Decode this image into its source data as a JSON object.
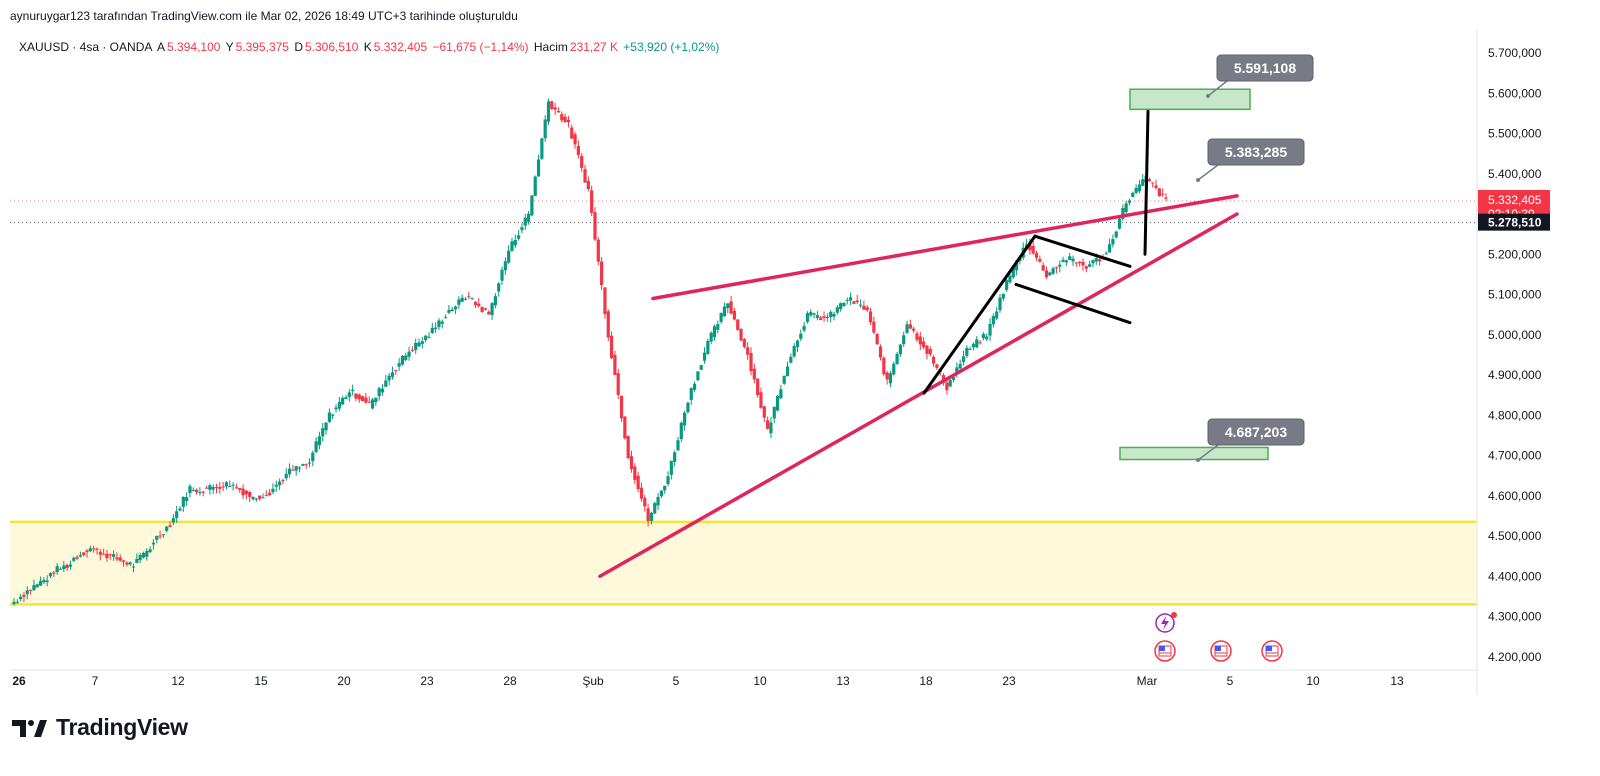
{
  "header": {
    "credit": "aynuruygar123 tarafından TradingView.com ile Mar 02, 2026 18:49 UTC+3 tarihinde oluşturuldu"
  },
  "symbol_bar": {
    "symbol": "XAUUSD · 4sa · OANDA",
    "open_label": "A",
    "open": "5.394,100",
    "high_label": "Y",
    "high": "5.395,375",
    "low_label": "D",
    "low": "5.306,510",
    "close_label": "K",
    "close": "5.332,405",
    "change": "−61,675 (−1,14%)",
    "volume_label": "Hacim",
    "volume": "231,27 K",
    "volume_change": "+53,920 (+1,02%)"
  },
  "brand": {
    "name": "TradingView"
  },
  "colors": {
    "up": "#089981",
    "down": "#f23645",
    "trendline": "#e0245e",
    "zone_fill": "#fff9db",
    "zone_border": "#f7e43a",
    "target_fill": "#c8e6c9",
    "target_border": "#4caf50",
    "callout_bg": "#787b86"
  },
  "chart_data": {
    "type": "candlestick",
    "symbol": "XAUUSD",
    "timeframe": "4sa",
    "x_axis_ticks": [
      "26",
      "7",
      "12",
      "15",
      "20",
      "23",
      "28",
      "Şub",
      "5",
      "10",
      "13",
      "18",
      "23",
      "Mar",
      "5",
      "10",
      "13"
    ],
    "y_axis_ticks": [
      "5.700,000",
      "5.600,000",
      "5.500,000",
      "5.400,000",
      "5.300,000",
      "5.200,000",
      "5.100,000",
      "5.000,000",
      "4.900,000",
      "4.800,000",
      "4.700,000",
      "4.600,000",
      "4.500,000",
      "4.400,000",
      "4.300,000",
      "4.200,000"
    ],
    "ylim": [
      4160,
      5740
    ],
    "price_tags": [
      {
        "value": "5.332,405",
        "sub": "02:10:39",
        "color": "#f23645"
      },
      {
        "value": "5.278,510",
        "color": "#131722"
      }
    ],
    "callouts": [
      "5.591,108",
      "5.383,285",
      "4.687,203"
    ],
    "support_zone": [
      4330,
      4535
    ],
    "target_zones": [
      [
        5560,
        5610
      ],
      [
        4690,
        4720
      ]
    ],
    "trendlines": [
      {
        "from": [
          "Şub 4",
          5090
        ],
        "to": [
          "Mar 5",
          5345
        ]
      },
      {
        "from": [
          "Şub 1",
          4400
        ],
        "to": [
          "Mar 5",
          5300
        ]
      }
    ],
    "pattern_lines": [
      {
        "from": [
          "Şub 18",
          4855
        ],
        "to": [
          "Şub 24",
          5245
        ]
      },
      {
        "from": [
          "Şub 24",
          5245
        ],
        "to": [
          "Şub 28",
          5170
        ]
      },
      {
        "from": [
          "Şub 23",
          5125
        ],
        "to": [
          "Şub 28",
          5030
        ]
      },
      {
        "from": [
          "Mar 1",
          5200
        ],
        "to": [
          "Mar 1",
          5555
        ]
      }
    ],
    "anchors": [
      [
        4370,
        4330
      ],
      [
        4400,
        4370
      ],
      [
        4430,
        4410
      ],
      [
        4470,
        4440
      ],
      [
        4450,
        4470
      ],
      [
        4430,
        4450
      ],
      [
        4470,
        4420
      ],
      [
        4530,
        4480
      ],
      [
        4620,
        4530
      ],
      [
        4620,
        4610
      ],
      [
        4630,
        4620
      ],
      [
        4600,
        4630
      ],
      [
        4610,
        4590
      ],
      [
        4660,
        4610
      ],
      [
        4680,
        4660
      ],
      [
        4800,
        4690
      ],
      [
        4860,
        4800
      ],
      [
        4830,
        4860
      ],
      [
        4900,
        4820
      ],
      [
        4960,
        4900
      ],
      [
        5000,
        4960
      ],
      [
        5060,
        5000
      ],
      [
        5100,
        5060
      ],
      [
        5050,
        5090
      ],
      [
        5210,
        5050
      ],
      [
        5300,
        5210
      ],
      [
        5580,
        5300
      ],
      [
        5520,
        5580
      ],
      [
        5360,
        5520
      ],
      [
        5000,
        5360
      ],
      [
        4700,
        5000
      ],
      [
        4540,
        4700
      ],
      [
        4650,
        4540
      ],
      [
        4840,
        4650
      ],
      [
        4980,
        4840
      ],
      [
        5080,
        4980
      ],
      [
        4950,
        5080
      ],
      [
        4760,
        4950
      ],
      [
        4930,
        4760
      ],
      [
        5050,
        4930
      ],
      [
        5040,
        5050
      ],
      [
        5090,
        5040
      ],
      [
        5060,
        5090
      ],
      [
        4880,
        5060
      ],
      [
        5030,
        4880
      ],
      [
        4960,
        5030
      ],
      [
        4870,
        4960
      ],
      [
        4960,
        4870
      ],
      [
        5000,
        4960
      ],
      [
        5130,
        5000
      ],
      [
        5230,
        5130
      ],
      [
        5150,
        5230
      ],
      [
        5190,
        5150
      ],
      [
        5170,
        5190
      ],
      [
        5200,
        5170
      ],
      [
        5330,
        5200
      ],
      [
        5390,
        5330
      ],
      [
        5332,
        5390
      ]
    ]
  }
}
